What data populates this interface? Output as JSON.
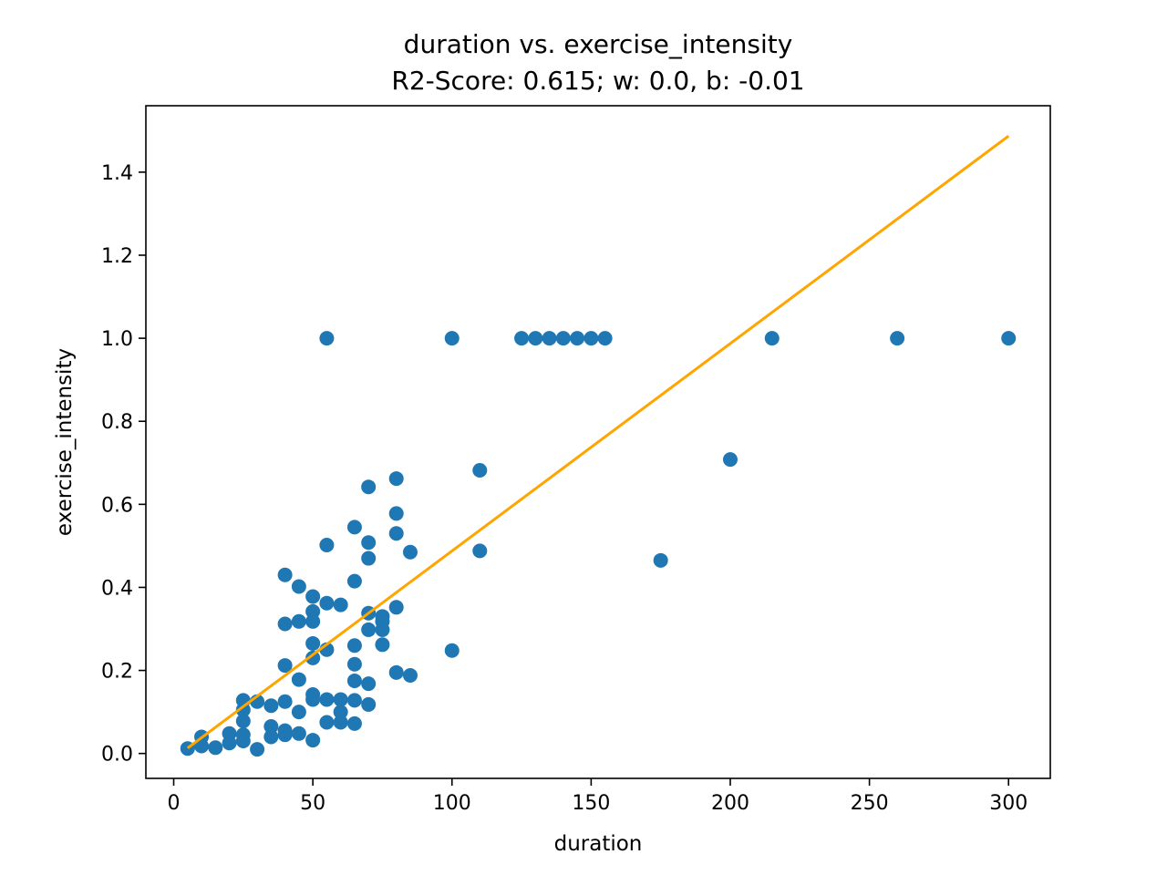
{
  "chart_data": {
    "type": "scatter",
    "title": "duration vs. exercise_intensity",
    "subtitle": "R2-Score: 0.615; w: 0.0, b: -0.01",
    "xlabel": "duration",
    "ylabel": "exercise_intensity",
    "xlim": [
      -10,
      315
    ],
    "ylim": [
      -0.06,
      1.56
    ],
    "xticks": [
      0,
      50,
      100,
      150,
      200,
      250,
      300
    ],
    "xtick_labels": [
      "0",
      "50",
      "100",
      "150",
      "200",
      "250",
      "300"
    ],
    "yticks": [
      0.0,
      0.2,
      0.4,
      0.6,
      0.8,
      1.0,
      1.2,
      1.4
    ],
    "ytick_labels": [
      "0.0",
      "0.2",
      "0.4",
      "0.6",
      "0.8",
      "1.0",
      "1.2",
      "1.4"
    ],
    "grid": false,
    "colors": {
      "points": "#1f77b4",
      "fit_line": "#ffa500",
      "axes": "#000000"
    },
    "series": [
      {
        "kind": "scatter",
        "points": [
          [
            5,
            0.012
          ],
          [
            10,
            0.04
          ],
          [
            10,
            0.018
          ],
          [
            15,
            0.014
          ],
          [
            20,
            0.048
          ],
          [
            20,
            0.025
          ],
          [
            25,
            0.128
          ],
          [
            25,
            0.105
          ],
          [
            25,
            0.078
          ],
          [
            25,
            0.045
          ],
          [
            25,
            0.03
          ],
          [
            30,
            0.125
          ],
          [
            30,
            0.01
          ],
          [
            35,
            0.115
          ],
          [
            35,
            0.065
          ],
          [
            35,
            0.04
          ],
          [
            40,
            0.43
          ],
          [
            40,
            0.312
          ],
          [
            40,
            0.212
          ],
          [
            40,
            0.125
          ],
          [
            40,
            0.055
          ],
          [
            40,
            0.045
          ],
          [
            45,
            0.402
          ],
          [
            45,
            0.318
          ],
          [
            45,
            0.178
          ],
          [
            45,
            0.1
          ],
          [
            45,
            0.048
          ],
          [
            50,
            0.378
          ],
          [
            50,
            0.342
          ],
          [
            50,
            0.318
          ],
          [
            50,
            0.265
          ],
          [
            50,
            0.23
          ],
          [
            50,
            0.142
          ],
          [
            50,
            0.13
          ],
          [
            50,
            0.032
          ],
          [
            55,
            1.0
          ],
          [
            55,
            0.502
          ],
          [
            55,
            0.362
          ],
          [
            55,
            0.25
          ],
          [
            55,
            0.13
          ],
          [
            55,
            0.075
          ],
          [
            60,
            0.358
          ],
          [
            60,
            0.13
          ],
          [
            60,
            0.1
          ],
          [
            60,
            0.075
          ],
          [
            65,
            0.545
          ],
          [
            65,
            0.415
          ],
          [
            65,
            0.26
          ],
          [
            65,
            0.215
          ],
          [
            65,
            0.175
          ],
          [
            65,
            0.128
          ],
          [
            65,
            0.072
          ],
          [
            70,
            0.642
          ],
          [
            70,
            0.508
          ],
          [
            70,
            0.47
          ],
          [
            70,
            0.338
          ],
          [
            70,
            0.298
          ],
          [
            70,
            0.168
          ],
          [
            70,
            0.118
          ],
          [
            75,
            0.33
          ],
          [
            75,
            0.318
          ],
          [
            75,
            0.298
          ],
          [
            75,
            0.262
          ],
          [
            80,
            0.662
          ],
          [
            80,
            0.578
          ],
          [
            80,
            0.53
          ],
          [
            80,
            0.352
          ],
          [
            80,
            0.195
          ],
          [
            85,
            0.485
          ],
          [
            85,
            0.188
          ],
          [
            100,
            1.0
          ],
          [
            100,
            0.248
          ],
          [
            110,
            0.682
          ],
          [
            110,
            0.488
          ],
          [
            125,
            1.0
          ],
          [
            130,
            1.0
          ],
          [
            135,
            1.0
          ],
          [
            140,
            1.0
          ],
          [
            145,
            1.0
          ],
          [
            150,
            1.0
          ],
          [
            155,
            1.0
          ],
          [
            175,
            0.465
          ],
          [
            200,
            0.708
          ],
          [
            215,
            1.0
          ],
          [
            260,
            1.0
          ],
          [
            300,
            1.0
          ]
        ]
      },
      {
        "kind": "line",
        "points": [
          [
            5,
            0.013
          ],
          [
            300,
            1.487
          ]
        ]
      }
    ]
  }
}
